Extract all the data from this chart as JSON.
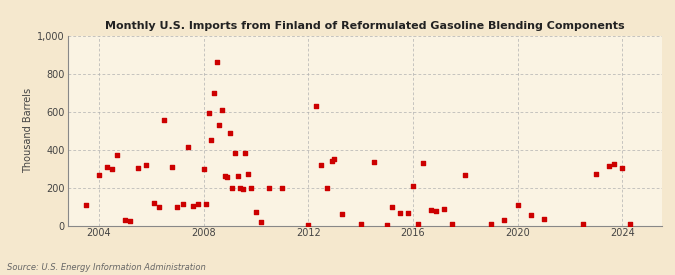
{
  "title": "Monthly U.S. Imports from Finland of Reformulated Gasoline Blending Components",
  "ylabel": "Thousand Barrels",
  "source": "Source: U.S. Energy Information Administration",
  "background_color": "#f5e8ce",
  "plot_bg_color": "#faf3e3",
  "marker_color": "#cc0000",
  "ylim": [
    0,
    1000
  ],
  "yticks": [
    0,
    200,
    400,
    600,
    800,
    1000
  ],
  "ytick_labels": [
    "0",
    "200",
    "400",
    "600",
    "800",
    "1,000"
  ],
  "xticks": [
    2004,
    2008,
    2012,
    2016,
    2020,
    2024
  ],
  "xlim": [
    2002.8,
    2025.5
  ],
  "data_points": [
    [
      2003.5,
      110
    ],
    [
      2004.0,
      265
    ],
    [
      2004.3,
      310
    ],
    [
      2004.5,
      300
    ],
    [
      2004.7,
      370
    ],
    [
      2005.0,
      30
    ],
    [
      2005.2,
      25
    ],
    [
      2005.5,
      305
    ],
    [
      2005.8,
      320
    ],
    [
      2006.1,
      120
    ],
    [
      2006.3,
      100
    ],
    [
      2006.5,
      555
    ],
    [
      2006.8,
      310
    ],
    [
      2007.0,
      95
    ],
    [
      2007.2,
      115
    ],
    [
      2007.4,
      415
    ],
    [
      2007.6,
      105
    ],
    [
      2007.8,
      115
    ],
    [
      2008.0,
      300
    ],
    [
      2008.1,
      115
    ],
    [
      2008.2,
      595
    ],
    [
      2008.3,
      450
    ],
    [
      2008.4,
      700
    ],
    [
      2008.5,
      860
    ],
    [
      2008.6,
      530
    ],
    [
      2008.7,
      610
    ],
    [
      2008.8,
      260
    ],
    [
      2008.9,
      255
    ],
    [
      2009.0,
      490
    ],
    [
      2009.1,
      200
    ],
    [
      2009.2,
      380
    ],
    [
      2009.3,
      260
    ],
    [
      2009.4,
      200
    ],
    [
      2009.5,
      190
    ],
    [
      2009.6,
      380
    ],
    [
      2009.7,
      270
    ],
    [
      2009.8,
      195
    ],
    [
      2010.0,
      70
    ],
    [
      2010.2,
      20
    ],
    [
      2010.5,
      200
    ],
    [
      2011.0,
      200
    ],
    [
      2012.0,
      5
    ],
    [
      2012.3,
      630
    ],
    [
      2012.5,
      320
    ],
    [
      2012.7,
      200
    ],
    [
      2012.9,
      340
    ],
    [
      2013.0,
      350
    ],
    [
      2013.3,
      60
    ],
    [
      2014.0,
      10
    ],
    [
      2014.5,
      335
    ],
    [
      2015.0,
      5
    ],
    [
      2015.2,
      100
    ],
    [
      2015.5,
      65
    ],
    [
      2015.8,
      65
    ],
    [
      2016.0,
      210
    ],
    [
      2016.2,
      10
    ],
    [
      2016.4,
      330
    ],
    [
      2016.7,
      80
    ],
    [
      2016.9,
      75
    ],
    [
      2017.2,
      85
    ],
    [
      2017.5,
      10
    ],
    [
      2018.0,
      265
    ],
    [
      2019.0,
      10
    ],
    [
      2019.5,
      30
    ],
    [
      2020.0,
      110
    ],
    [
      2020.5,
      55
    ],
    [
      2021.0,
      35
    ],
    [
      2022.5,
      10
    ],
    [
      2023.0,
      270
    ],
    [
      2023.5,
      315
    ],
    [
      2023.7,
      325
    ],
    [
      2024.0,
      305
    ],
    [
      2024.3,
      10
    ]
  ]
}
